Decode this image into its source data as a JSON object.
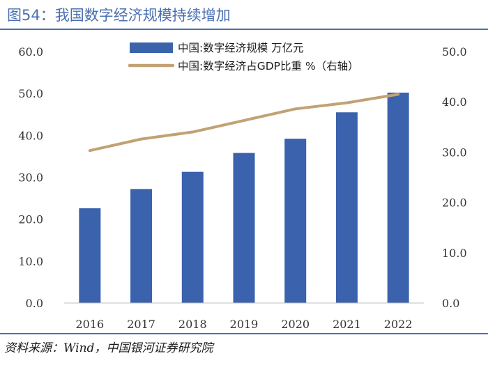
{
  "header": {
    "title": "图54：我国数字经济规模持续增加"
  },
  "footer": {
    "source": "资料来源：Wind，中国银河证券研究院"
  },
  "colors": {
    "bar": "#3a62ad",
    "line": "#c2a174",
    "accent": "#4a6fb0"
  },
  "chart_data": {
    "type": "bar",
    "title": "",
    "categories": [
      "2016",
      "2017",
      "2018",
      "2019",
      "2020",
      "2021",
      "2022"
    ],
    "series": [
      {
        "name": "中国:数字经济规模 万亿元",
        "type": "bar",
        "axis": "left",
        "values": [
          22.6,
          27.2,
          31.3,
          35.8,
          39.2,
          45.5,
          50.2
        ]
      },
      {
        "name": "中国:数字经济占GDP比重 %（右轴）",
        "type": "line",
        "axis": "right",
        "values": [
          30.3,
          32.6,
          34.0,
          36.3,
          38.6,
          39.8,
          41.5
        ]
      }
    ],
    "y_left": {
      "min": 0,
      "max": 60,
      "step": 10,
      "tick_labels": [
        "0.0",
        "10.0",
        "20.0",
        "30.0",
        "40.0",
        "50.0",
        "60.0"
      ]
    },
    "y_right": {
      "min": 0,
      "max": 50,
      "step": 10,
      "tick_labels": [
        "0.0",
        "10.0",
        "20.0",
        "30.0",
        "40.0",
        "50.0"
      ]
    },
    "grid": false,
    "legend_position": "top-center"
  }
}
